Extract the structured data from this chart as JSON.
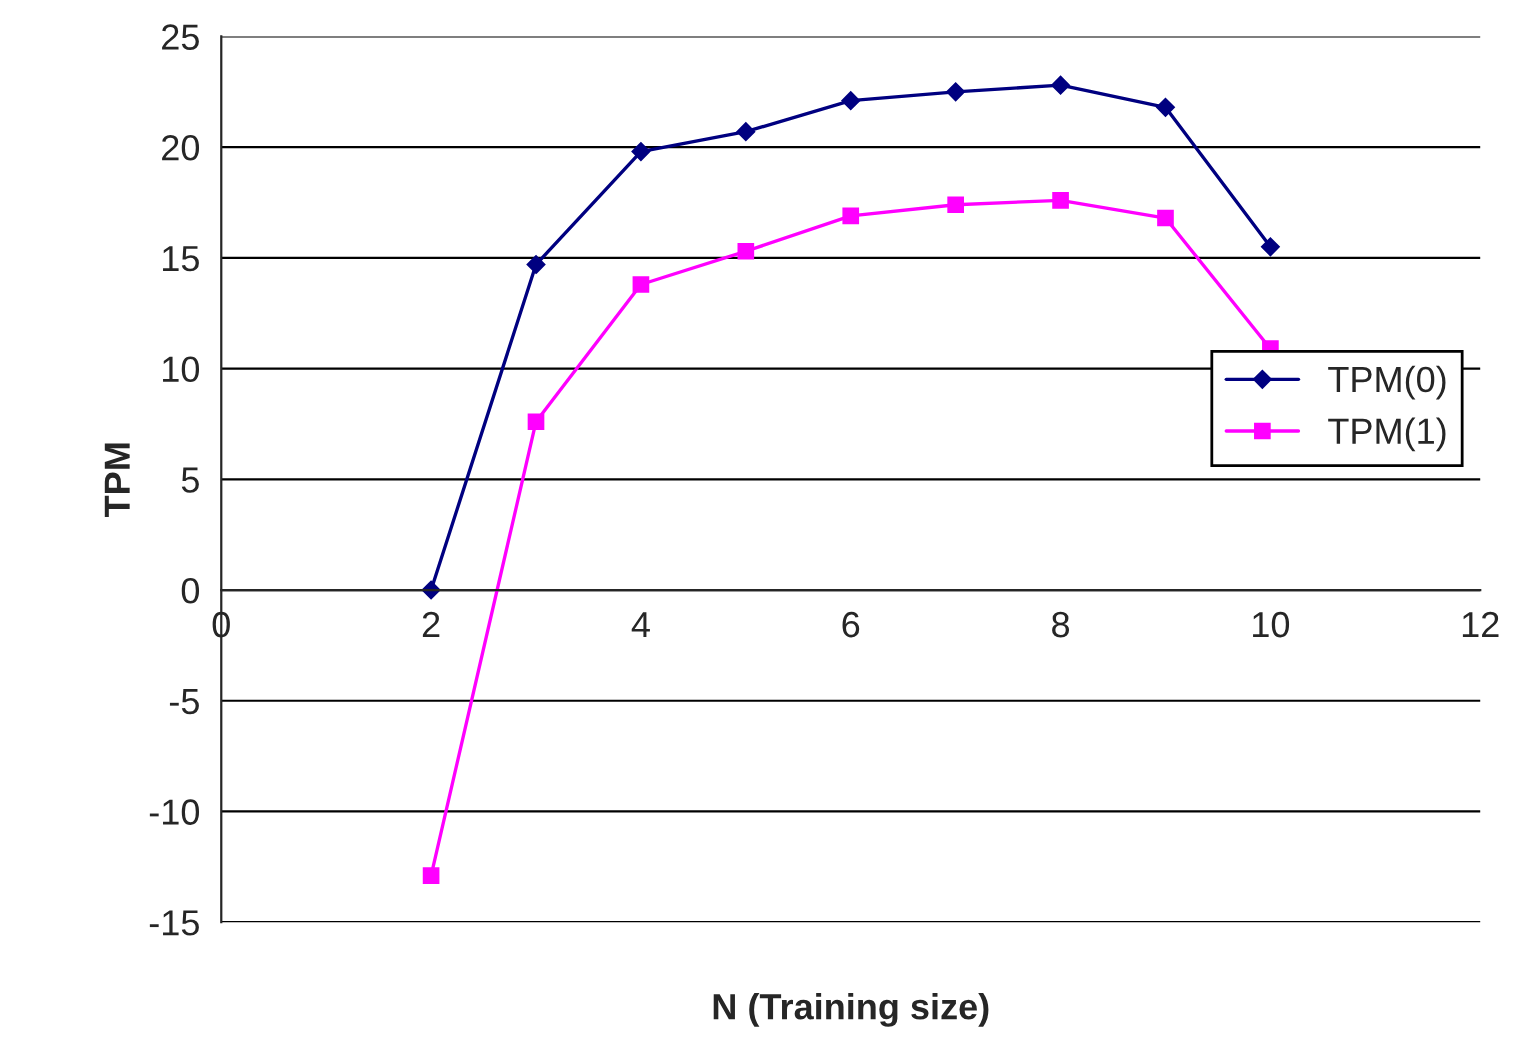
{
  "chart_data": {
    "type": "line",
    "xlabel": "N (Training size)",
    "ylabel": "TPM",
    "x": [
      2,
      3,
      4,
      5,
      6,
      7,
      8,
      9,
      10
    ],
    "series": [
      {
        "name": "TPM(0)",
        "color": "#000080",
        "marker": "diamond",
        "values": [
          0,
          14.7,
          19.8,
          20.7,
          22.1,
          22.5,
          22.8,
          21.8,
          15.5
        ]
      },
      {
        "name": "TPM(1)",
        "color": "#ff00ff",
        "marker": "square",
        "values": [
          -12.9,
          7.6,
          13.8,
          15.3,
          16.9,
          17.4,
          17.6,
          16.8,
          10.9
        ]
      }
    ],
    "xlim": [
      0,
      12
    ],
    "xticks": [
      0,
      2,
      4,
      6,
      8,
      10,
      12
    ],
    "ylim": [
      -15,
      25
    ],
    "yticks": [
      -15,
      -10,
      -5,
      0,
      5,
      10,
      15,
      20,
      25
    ],
    "grid": "y",
    "legend": "center right",
    "line_style": "solid"
  }
}
